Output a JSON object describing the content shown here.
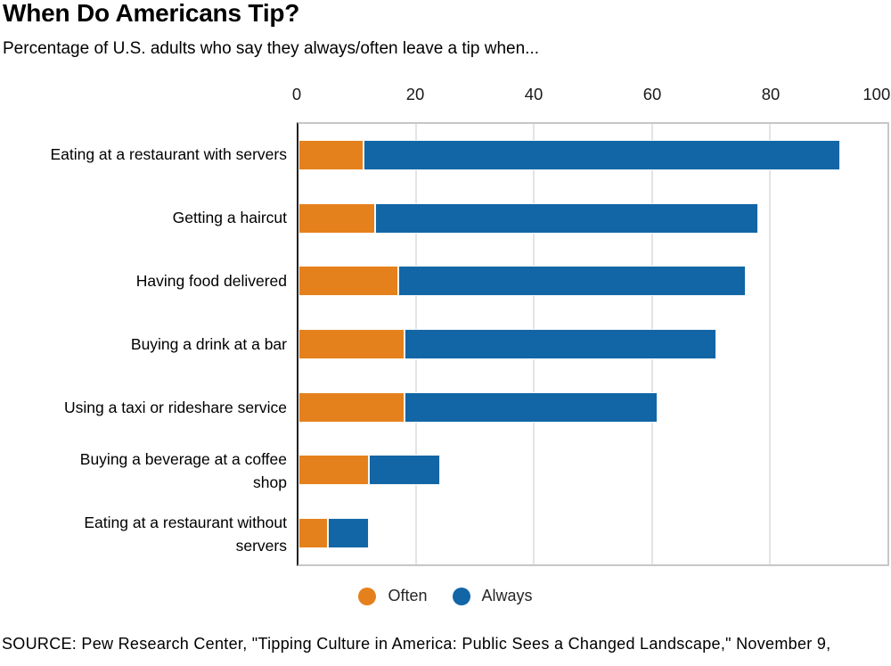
{
  "header": {
    "title": "When Do Americans Tip?",
    "subtitle": "Percentage of U.S. adults who say they always/often leave a tip when..."
  },
  "chart_data": {
    "type": "bar",
    "orientation": "horizontal",
    "stacked": true,
    "title": "When Do Americans Tip?",
    "subtitle": "Percentage of U.S. adults who say they always/often leave a tip when...",
    "xlabel": "",
    "ylabel": "",
    "xlim": [
      0,
      100
    ],
    "x_ticks": [
      0,
      20,
      40,
      60,
      80,
      100
    ],
    "grid": "vertical",
    "legend_position": "bottom",
    "categories": [
      "Eating at a restaurant with servers",
      "Getting a haircut",
      "Having food delivered",
      "Buying a drink at a bar",
      "Using a taxi or rideshare service",
      "Buying a beverage at a coffee\nshop",
      "Eating at a restaurant without\nservers"
    ],
    "series": [
      {
        "name": "Often",
        "color": "#e5811c",
        "values": [
          11,
          13,
          17,
          18,
          18,
          12,
          5
        ]
      },
      {
        "name": "Always",
        "color": "#1266a5",
        "values": [
          81,
          65,
          59,
          53,
          43,
          12,
          7
        ]
      }
    ],
    "totals_always_often": [
      92,
      78,
      76,
      71,
      61,
      24,
      12
    ]
  },
  "legend": {
    "items": [
      {
        "label": "Often",
        "color": "#e5811c"
      },
      {
        "label": "Always",
        "color": "#1266a5"
      }
    ]
  },
  "source": {
    "text": "SOURCE: Pew Research Center, \"Tipping Culture in America: Public Sees a Changed Landscape,\" November 9,"
  }
}
